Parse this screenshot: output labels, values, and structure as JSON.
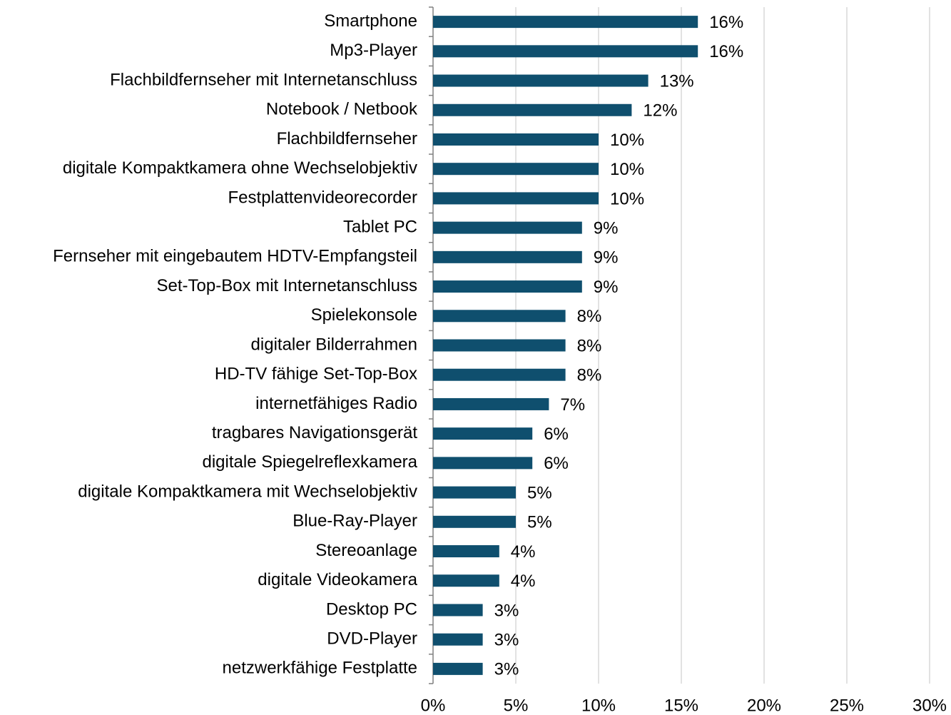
{
  "chart_data": {
    "type": "bar",
    "orientation": "horizontal",
    "categories": [
      "Smartphone",
      "Mp3-Player",
      "Flachbildfernseher mit Internetanschluss",
      "Notebook / Netbook",
      "Flachbildfernseher",
      "digitale Kompaktkamera ohne Wechselobjektiv",
      "Festplattenvideorecorder",
      "Tablet PC",
      "Fernseher mit eingebautem HDTV-Empfangsteil",
      "Set-Top-Box mit Internetanschluss",
      "Spielekonsole",
      "digitaler Bilderrahmen",
      "HD-TV fähige Set-Top-Box",
      "internetfähiges Radio",
      "tragbares Navigationsgerät",
      "digitale Spiegelreflexkamera",
      "digitale Kompaktkamera mit Wechselobjektiv",
      "Blue-Ray-Player",
      "Stereoanlage",
      "digitale Videokamera",
      "Desktop PC",
      "DVD-Player",
      "netzwerkfähige Festplatte"
    ],
    "values": [
      16,
      16,
      13,
      12,
      10,
      10,
      10,
      9,
      9,
      9,
      8,
      8,
      8,
      7,
      6,
      6,
      5,
      5,
      4,
      4,
      3,
      3,
      3
    ],
    "value_labels": [
      "16%",
      "16%",
      "13%",
      "12%",
      "10%",
      "10%",
      "10%",
      "9%",
      "9%",
      "9%",
      "8%",
      "8%",
      "8%",
      "7%",
      "6%",
      "6%",
      "5%",
      "5%",
      "4%",
      "4%",
      "3%",
      "3%",
      "3%"
    ],
    "color": "#0f4f6e",
    "xlim": [
      0,
      30
    ],
    "xticks": [
      {
        "value": 0,
        "label": "0%"
      },
      {
        "value": 5,
        "label": "5%"
      },
      {
        "value": 10,
        "label": "10%"
      },
      {
        "value": 15,
        "label": "15%"
      },
      {
        "value": 20,
        "label": "20%"
      },
      {
        "value": 25,
        "label": "25%"
      },
      {
        "value": 30,
        "label": "30%"
      }
    ],
    "grid": true
  }
}
